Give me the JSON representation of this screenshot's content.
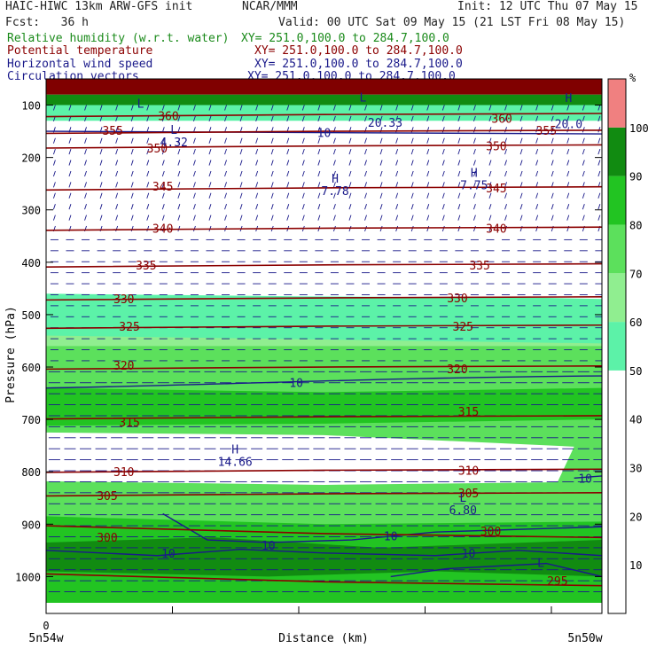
{
  "header": {
    "title_left": "HAIC-HIWC 13km ARW-GFS init",
    "org": "NCAR/MMM",
    "init": "Init: 12 UTC Thu 07 May 15",
    "fcst": "Fcst:   36 h",
    "valid": "Valid: 00 UTC Sat 09 May 15 (21 LST Fri 08 May 15)",
    "fields": [
      {
        "label": "Relative humidity (w.r.t. water)",
        "xy": "XY= 251.0,100.0 to 284.7,100.0",
        "color": "#1a8a1a"
      },
      {
        "label": "Potential temperature",
        "xy": "XY= 251.0,100.0 to 284.7,100.0",
        "color": "#8b0000"
      },
      {
        "label": "Horizontal wind speed",
        "xy": "XY= 251.0,100.0 to 284.7,100.0",
        "color": "#1a1a8a"
      },
      {
        "label": "Circulation vectors",
        "xy": "XY= 251.0,100.0 to 284.7,100.0",
        "color": "#1a1a8a"
      }
    ]
  },
  "chart_data": {
    "type": "cross-section contour",
    "ylabel": "Pressure (hPa)",
    "xlabel": "Distance (km)",
    "x_start_label": "5n54w",
    "x_end_label": "5n50w",
    "x_zero_label": "0",
    "y_ticks": [
      100,
      200,
      300,
      400,
      500,
      600,
      700,
      800,
      900,
      1000
    ],
    "ylim": [
      1050,
      50
    ],
    "colorbar": {
      "unit": "%",
      "levels": [
        10,
        20,
        30,
        40,
        50,
        60,
        70,
        80,
        90,
        100
      ],
      "colors": [
        "#ffffff",
        "#ffffff",
        "#ffffff",
        "#ffffff",
        "#ffffff",
        "#5cf2a8",
        "#90ee90",
        "#5ce05c",
        "#22c422",
        "#118b11",
        "#006400",
        "#f08080"
      ]
    },
    "theta_labels": [
      {
        "v": "360",
        "p": 120,
        "x": 0.22
      },
      {
        "v": "360",
        "p": 125,
        "x": 0.82
      },
      {
        "v": "355",
        "p": 148,
        "x": 0.12
      },
      {
        "v": "355",
        "p": 148,
        "x": 0.9
      },
      {
        "v": "350",
        "p": 182,
        "x": 0.2
      },
      {
        "v": "350",
        "p": 178,
        "x": 0.81
      },
      {
        "v": "345",
        "p": 255,
        "x": 0.21
      },
      {
        "v": "345",
        "p": 258,
        "x": 0.81
      },
      {
        "v": "340",
        "p": 335,
        "x": 0.21
      },
      {
        "v": "340",
        "p": 335,
        "x": 0.81
      },
      {
        "v": "335",
        "p": 405,
        "x": 0.18
      },
      {
        "v": "335",
        "p": 405,
        "x": 0.78
      },
      {
        "v": "330",
        "p": 470,
        "x": 0.14
      },
      {
        "v": "330",
        "p": 468,
        "x": 0.74
      },
      {
        "v": "325",
        "p": 522,
        "x": 0.15
      },
      {
        "v": "325",
        "p": 522,
        "x": 0.75
      },
      {
        "v": "320",
        "p": 597,
        "x": 0.14
      },
      {
        "v": "320",
        "p": 603,
        "x": 0.74
      },
      {
        "v": "315",
        "p": 705,
        "x": 0.15
      },
      {
        "v": "315",
        "p": 685,
        "x": 0.76
      },
      {
        "v": "310",
        "p": 800,
        "x": 0.14
      },
      {
        "v": "310",
        "p": 797,
        "x": 0.76
      },
      {
        "v": "305",
        "p": 845,
        "x": 0.11
      },
      {
        "v": "305",
        "p": 840,
        "x": 0.76
      },
      {
        "v": "300",
        "p": 925,
        "x": 0.11
      },
      {
        "v": "300",
        "p": 913,
        "x": 0.8
      },
      {
        "v": "295",
        "p": 1008,
        "x": 0.92
      }
    ],
    "wind_labels": [
      {
        "v": "10",
        "p": 152,
        "x": 0.5
      },
      {
        "v": "10",
        "p": 630,
        "x": 0.45
      },
      {
        "v": "10",
        "p": 812,
        "x": 0.97
      },
      {
        "v": "10",
        "p": 940,
        "x": 0.4
      },
      {
        "v": "10",
        "p": 922,
        "x": 0.62
      },
      {
        "v": "10",
        "p": 955,
        "x": 0.76
      },
      {
        "v": "10",
        "p": 955,
        "x": 0.22
      }
    ],
    "extrema": [
      {
        "kind": "L",
        "value": "",
        "p": 115,
        "x": 0.17
      },
      {
        "kind": "L",
        "value": "",
        "p": 103,
        "x": 0.57
      },
      {
        "kind": "H",
        "value": "",
        "p": 104,
        "x": 0.94
      },
      {
        "kind": "",
        "value": "20.33",
        "p": 128,
        "x": 0.61
      },
      {
        "kind": "",
        "value": "20.0",
        "p": 130,
        "x": 0.94
      },
      {
        "kind": "L",
        "value": "4.32",
        "p": 165,
        "x": 0.23
      },
      {
        "kind": "H",
        "value": "7.78",
        "p": 258,
        "x": 0.52
      },
      {
        "kind": "H",
        "value": "7.75",
        "p": 247,
        "x": 0.77
      },
      {
        "kind": "H",
        "value": "14.66",
        "p": 775,
        "x": 0.34
      },
      {
        "kind": "L",
        "value": "6.80",
        "p": 867,
        "x": 0.75
      },
      {
        "kind": "L",
        "value": "",
        "p": 992,
        "x": 0.89
      }
    ]
  }
}
